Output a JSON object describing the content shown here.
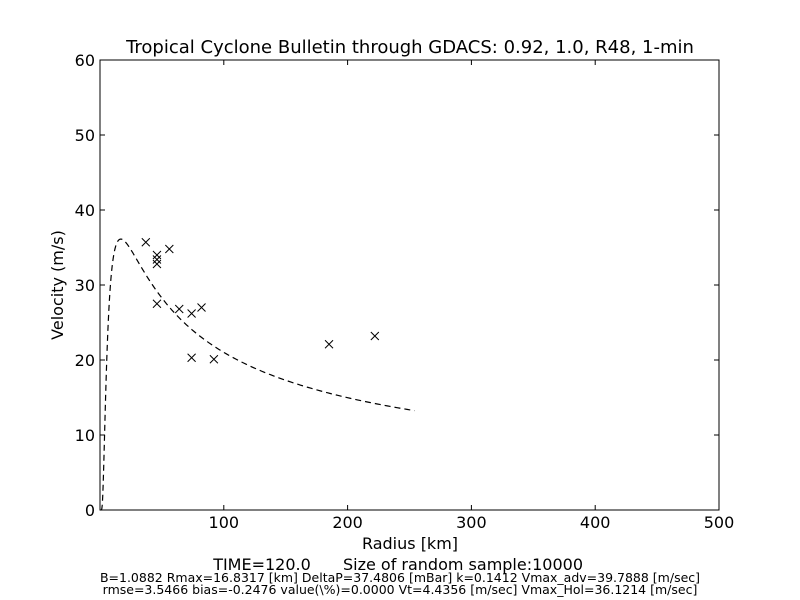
{
  "chart_data": {
    "type": "scatter",
    "title": "Tropical Cyclone Bulletin through GDACS: 0.92, 1.0, R48, 1-min",
    "xlabel": "Radius [km]",
    "ylabel": "Velocity (m/s)",
    "xlim": [
      0,
      500
    ],
    "ylim": [
      0,
      60
    ],
    "xticks": [
      100,
      200,
      300,
      400,
      500
    ],
    "xtick_labels": [
      "100",
      "200",
      "300",
      "400",
      "500"
    ],
    "yticks": [
      0,
      10,
      20,
      30,
      40,
      50,
      60
    ],
    "ytick_labels": [
      "0",
      "10",
      "20",
      "30",
      "40",
      "50",
      "60"
    ],
    "grid": false,
    "observations": {
      "marker": "x",
      "points": [
        {
          "x": 37,
          "y": 35.7
        },
        {
          "x": 46,
          "y": 34.0
        },
        {
          "x": 46,
          "y": 33.4
        },
        {
          "x": 46,
          "y": 32.8
        },
        {
          "x": 56,
          "y": 34.8
        },
        {
          "x": 46,
          "y": 27.5
        },
        {
          "x": 64,
          "y": 26.8
        },
        {
          "x": 74,
          "y": 26.2
        },
        {
          "x": 82,
          "y": 27.0
        },
        {
          "x": 74,
          "y": 20.3
        },
        {
          "x": 92,
          "y": 20.1
        },
        {
          "x": 185,
          "y": 22.1
        },
        {
          "x": 222,
          "y": 23.2
        }
      ]
    },
    "model_curve": {
      "style": "dashed",
      "B": 1.0882,
      "Rmax": 16.8317,
      "Vmax": 36.1214,
      "x_range": [
        0.5,
        255
      ]
    }
  },
  "footer": {
    "time": "TIME=120.0",
    "sample": "Size of random sample:10000",
    "line1": "B=1.0882 Rmax=16.8317 [km]  DeltaP=37.4806 [mBar] k=0.1412 Vmax_adv=39.7888 [m/sec]",
    "line2": "rmse=3.5466 bias=-0.2476 value(\\%)=0.0000 Vt=4.4356 [m/sec] Vmax_Hol=36.1214 [m/sec]"
  }
}
